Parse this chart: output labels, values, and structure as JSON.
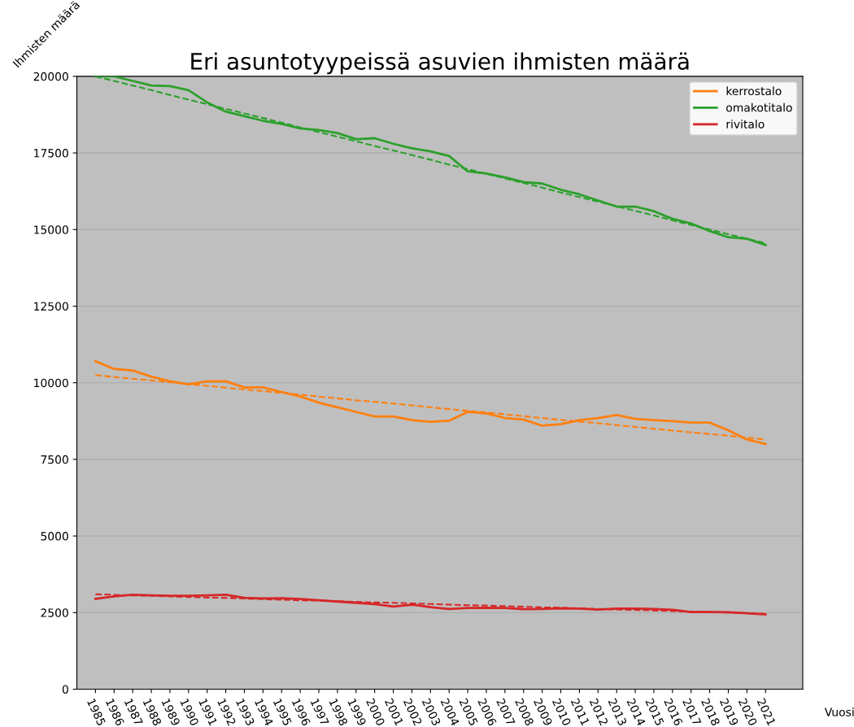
{
  "chart_data": {
    "type": "line",
    "title": "Eri asuntotyypeissä asuvien ihmisten määrä",
    "xlabel": "Vuosi",
    "ylabel": "Ihmisten määrä",
    "categories": [
      "1985",
      "1986",
      "1987",
      "1988",
      "1989",
      "1990",
      "1991",
      "1992",
      "1993",
      "1994",
      "1995",
      "1996",
      "1997",
      "1998",
      "1999",
      "2000",
      "2001",
      "2002",
      "2003",
      "2004",
      "2005",
      "2006",
      "2007",
      "2008",
      "2009",
      "2010",
      "2011",
      "2012",
      "2013",
      "2014",
      "2015",
      "2016",
      "2017",
      "2018",
      "2019",
      "2020",
      "2021"
    ],
    "series": [
      {
        "name": "kerrostalo",
        "color": "#ff7f0e",
        "values": [
          10700,
          10450,
          10400,
          10200,
          10050,
          9950,
          10050,
          10050,
          9850,
          9850,
          9700,
          9550,
          9350,
          9200,
          9050,
          8900,
          8900,
          8780,
          8730,
          8760,
          9050,
          9000,
          8850,
          8800,
          8600,
          8650,
          8780,
          8850,
          8950,
          8820,
          8780,
          8750,
          8700,
          8700,
          8450,
          8150,
          8000
        ]
      },
      {
        "name": "omakotitalo",
        "color": "#2ca02c",
        "values": [
          20000,
          20000,
          19850,
          19700,
          19680,
          19550,
          19150,
          18850,
          18700,
          18550,
          18450,
          18300,
          18250,
          18150,
          17950,
          17980,
          17800,
          17650,
          17550,
          17400,
          16900,
          16830,
          16700,
          16550,
          16500,
          16300,
          16150,
          15950,
          15750,
          15750,
          15600,
          15350,
          15200,
          14950,
          14750,
          14700,
          14500
        ]
      },
      {
        "name": "rivitalo",
        "color": "#d62728",
        "values": [
          2950,
          3030,
          3080,
          3060,
          3050,
          3050,
          3060,
          3080,
          2980,
          2960,
          2970,
          2940,
          2900,
          2860,
          2820,
          2780,
          2700,
          2760,
          2680,
          2620,
          2650,
          2660,
          2650,
          2610,
          2620,
          2640,
          2630,
          2600,
          2630,
          2630,
          2620,
          2590,
          2520,
          2520,
          2510,
          2480,
          2440
        ]
      },
      {
        "color": "#ff7f0e",
        "values": [
          10250,
          10190,
          10130,
          10080,
          10020,
          9960,
          9900,
          9840,
          9780,
          9730,
          9670,
          9610,
          9550,
          9490,
          9430,
          9380,
          9320,
          9260,
          9200,
          9140,
          9080,
          9030,
          8970,
          8910,
          8850,
          8790,
          8730,
          8680,
          8620,
          8560,
          8500,
          8440,
          8380,
          8330,
          8270,
          8210,
          8150
        ],
        "line_style": "dashed"
      },
      {
        "color": "#2ca02c",
        "values": [
          20000,
          19850,
          19700,
          19550,
          19390,
          19240,
          19090,
          18940,
          18790,
          18640,
          18490,
          18330,
          18180,
          18030,
          17880,
          17730,
          17580,
          17430,
          17280,
          17120,
          16970,
          16820,
          16670,
          16520,
          16370,
          16210,
          16060,
          15910,
          15760,
          15610,
          15460,
          15300,
          15150,
          15000,
          14850,
          14700,
          14550
        ],
        "line_style": "dashed"
      },
      {
        "color": "#d62728",
        "values": [
          3100,
          3080,
          3060,
          3050,
          3030,
          3010,
          2990,
          2980,
          2960,
          2940,
          2920,
          2900,
          2890,
          2870,
          2850,
          2830,
          2820,
          2800,
          2780,
          2760,
          2740,
          2730,
          2710,
          2690,
          2670,
          2660,
          2640,
          2620,
          2600,
          2590,
          2570,
          2550,
          2530,
          2520,
          2500,
          2480,
          2460
        ],
        "line_style": "dashed"
      }
    ],
    "ylim": [
      0,
      20000
    ],
    "yticks": [
      0,
      2500,
      5000,
      7500,
      10000,
      12500,
      15000,
      17500,
      20000
    ],
    "grid": "y",
    "legend": "top right",
    "line_style": "solid"
  }
}
